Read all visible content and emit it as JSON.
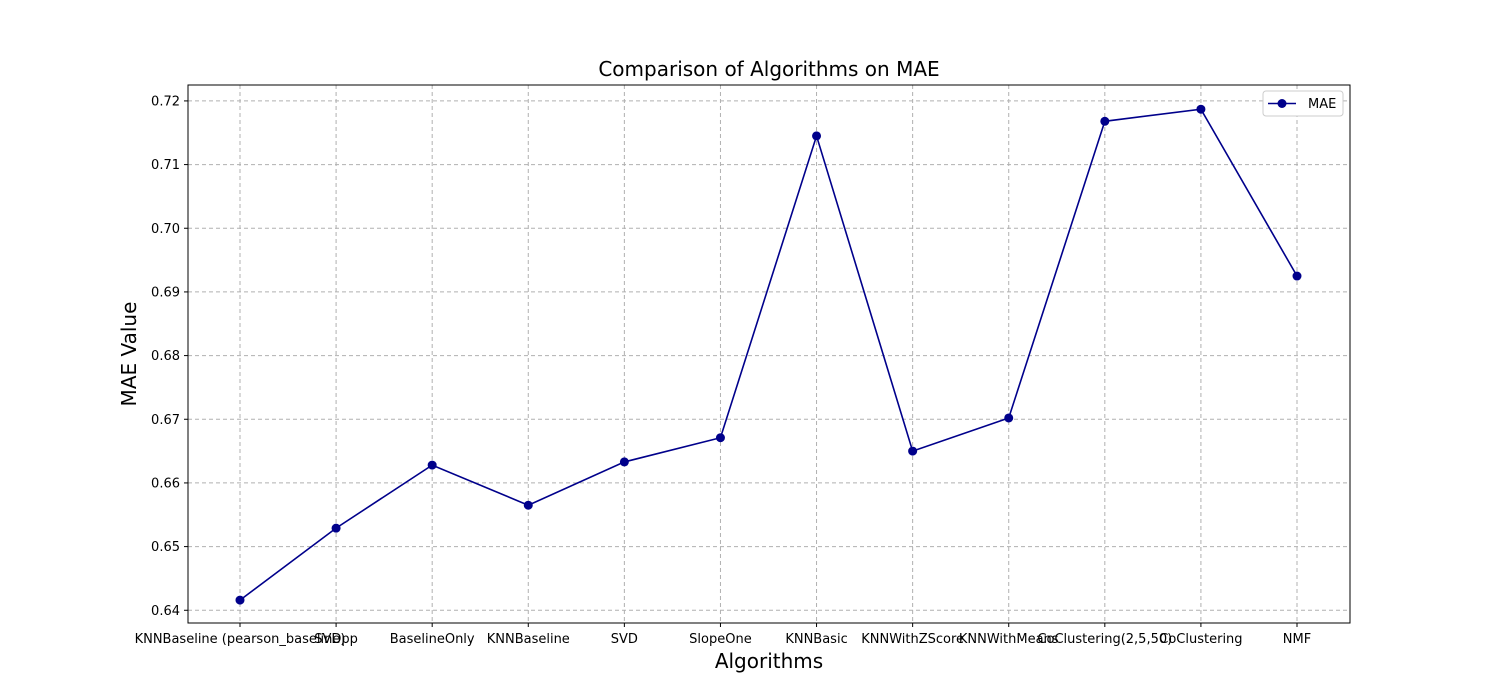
{
  "chart_data": {
    "type": "line",
    "title": "Comparison of Algorithms on MAE",
    "xlabel": "Algorithms",
    "ylabel": "MAE Value",
    "categories": [
      "KNNBaseline (pearson_baseline)",
      "SVDpp",
      "BaselineOnly",
      "KNNBaseline",
      "SVD",
      "SlopeOne",
      "KNNBasic",
      "KNNWithZScore",
      "KNNWithMeans",
      "CoClustering(2,5,50)",
      "CoClustering",
      "NMF"
    ],
    "series": [
      {
        "name": "MAE",
        "color": "#00008b",
        "values": [
          0.6416,
          0.6529,
          0.6628,
          0.6565,
          0.6633,
          0.6671,
          0.7145,
          0.665,
          0.6702,
          0.7168,
          0.7187,
          0.6925
        ]
      }
    ],
    "ylim": [
      0.638,
      0.7225
    ],
    "yticks": [
      "0.64",
      "0.65",
      "0.66",
      "0.67",
      "0.68",
      "0.69",
      "0.70",
      "0.71",
      "0.72"
    ],
    "grid": true,
    "legend_position": "top-right"
  }
}
